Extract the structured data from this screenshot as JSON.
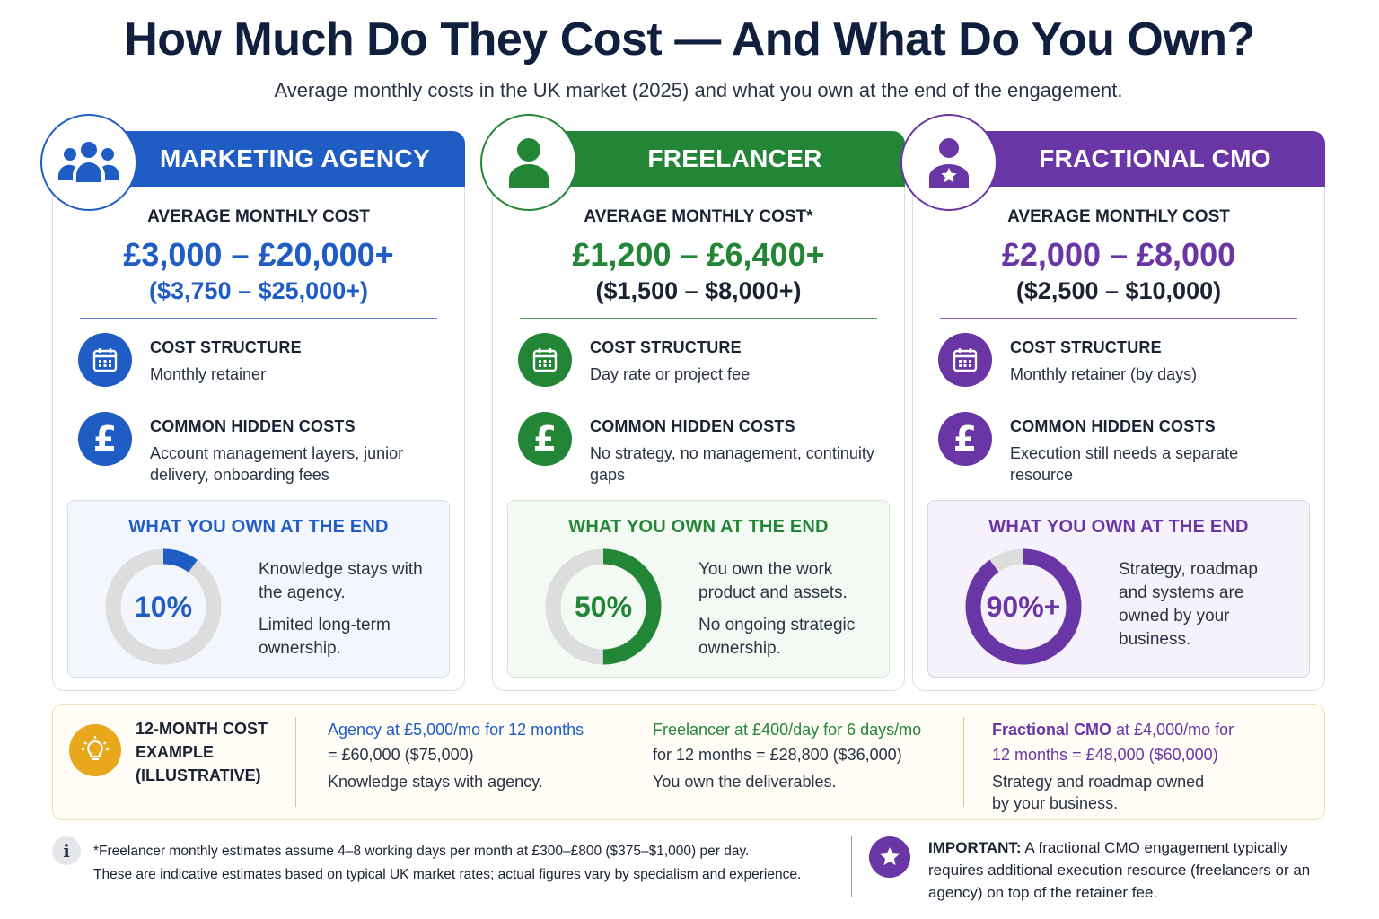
{
  "title": "How Much Do They Cost — And What Do You Own?",
  "subtitle": "Average monthly costs in the UK market (2025) and what you own at the end of the engagement.",
  "colors": {
    "agency": "#1f5cc4",
    "freelancer": "#238636",
    "cmo": "#6a35a5",
    "bulb": "#e9a71c"
  },
  "cards": [
    {
      "header": "MARKETING AGENCY",
      "icon": "people-group-icon",
      "cost_label": "AVERAGE MONTHLY COST",
      "cost_gbp": "£3,000 – £20,000+",
      "cost_usd": "($3,750 – $25,000+)",
      "structure_title": "COST STRUCTURE",
      "structure_value": "Monthly retainer",
      "hidden_title": "COMMON HIDDEN COSTS",
      "hidden_value": "Account management layers, junior delivery, onboarding fees",
      "own_title": "WHAT YOU OWN AT THE END",
      "own_pct_label": "10%",
      "own_fraction": 0.1,
      "own_line1": "Knowledge stays with the agency.",
      "own_line2": "Limited long-term ownership."
    },
    {
      "header": "FREELANCER",
      "icon": "person-icon",
      "cost_label": "AVERAGE MONTHLY COST*",
      "cost_gbp": "£1,200 – £6,400+",
      "cost_usd": "($1,500 – $8,000+)",
      "structure_title": "COST STRUCTURE",
      "structure_value": "Day rate or project fee",
      "hidden_title": "COMMON HIDDEN COSTS",
      "hidden_value": "No strategy, no management, continuity gaps",
      "own_title": "WHAT YOU OWN AT THE END",
      "own_pct_label": "50%",
      "own_fraction": 0.5,
      "own_line1": "You own the work product and assets.",
      "own_line2": "No ongoing strategic ownership."
    },
    {
      "header": "FRACTIONAL CMO",
      "icon": "person-star-icon",
      "cost_label": "AVERAGE MONTHLY COST",
      "cost_gbp": "£2,000 – £8,000",
      "cost_usd": "($2,500 – $10,000)",
      "structure_title": "COST STRUCTURE",
      "structure_value": "Monthly retainer (by days)",
      "hidden_title": "COMMON HIDDEN COSTS",
      "hidden_value": "Execution still needs a separate resource",
      "own_title": "WHAT YOU OWN AT THE END",
      "own_pct_label": "90%+",
      "own_fraction": 0.9,
      "own_line1": "Strategy, roadmap and systems are owned by your business.",
      "own_line2": ""
    }
  ],
  "example": {
    "label": "12-MONTH COST EXAMPLE (ILLUSTRATIVE)",
    "agency_calc": "Agency at £5,000/mo for 12 months",
    "agency_total": "= £60,000 ($75,000)",
    "agency_note": "Knowledge stays with agency.",
    "freelancer_calc": "Freelancer at £400/day for 6 days/mo",
    "freelancer_total": "for 12 months = £28,800 ($36,000)",
    "freelancer_note": "You own the deliverables.",
    "cmo_name": "Fractional CMO",
    "cmo_calc": " at £4,000/mo for",
    "cmo_total": "12 months = £48,000 ($60,000)",
    "cmo_note": "Strategy and roadmap owned by your business."
  },
  "footnote": {
    "line1": "*Freelancer monthly estimates assume 4–8 working days per month at £300–£800 ($375–$1,000) per day.",
    "line2": "These are indicative estimates based on typical UK market rates; actual figures vary by specialism and experience."
  },
  "important": {
    "label": "IMPORTANT:",
    "text": " A fractional CMO engagement typically requires additional execution resource (freelancers or an agency) on top of the retainer fee."
  }
}
